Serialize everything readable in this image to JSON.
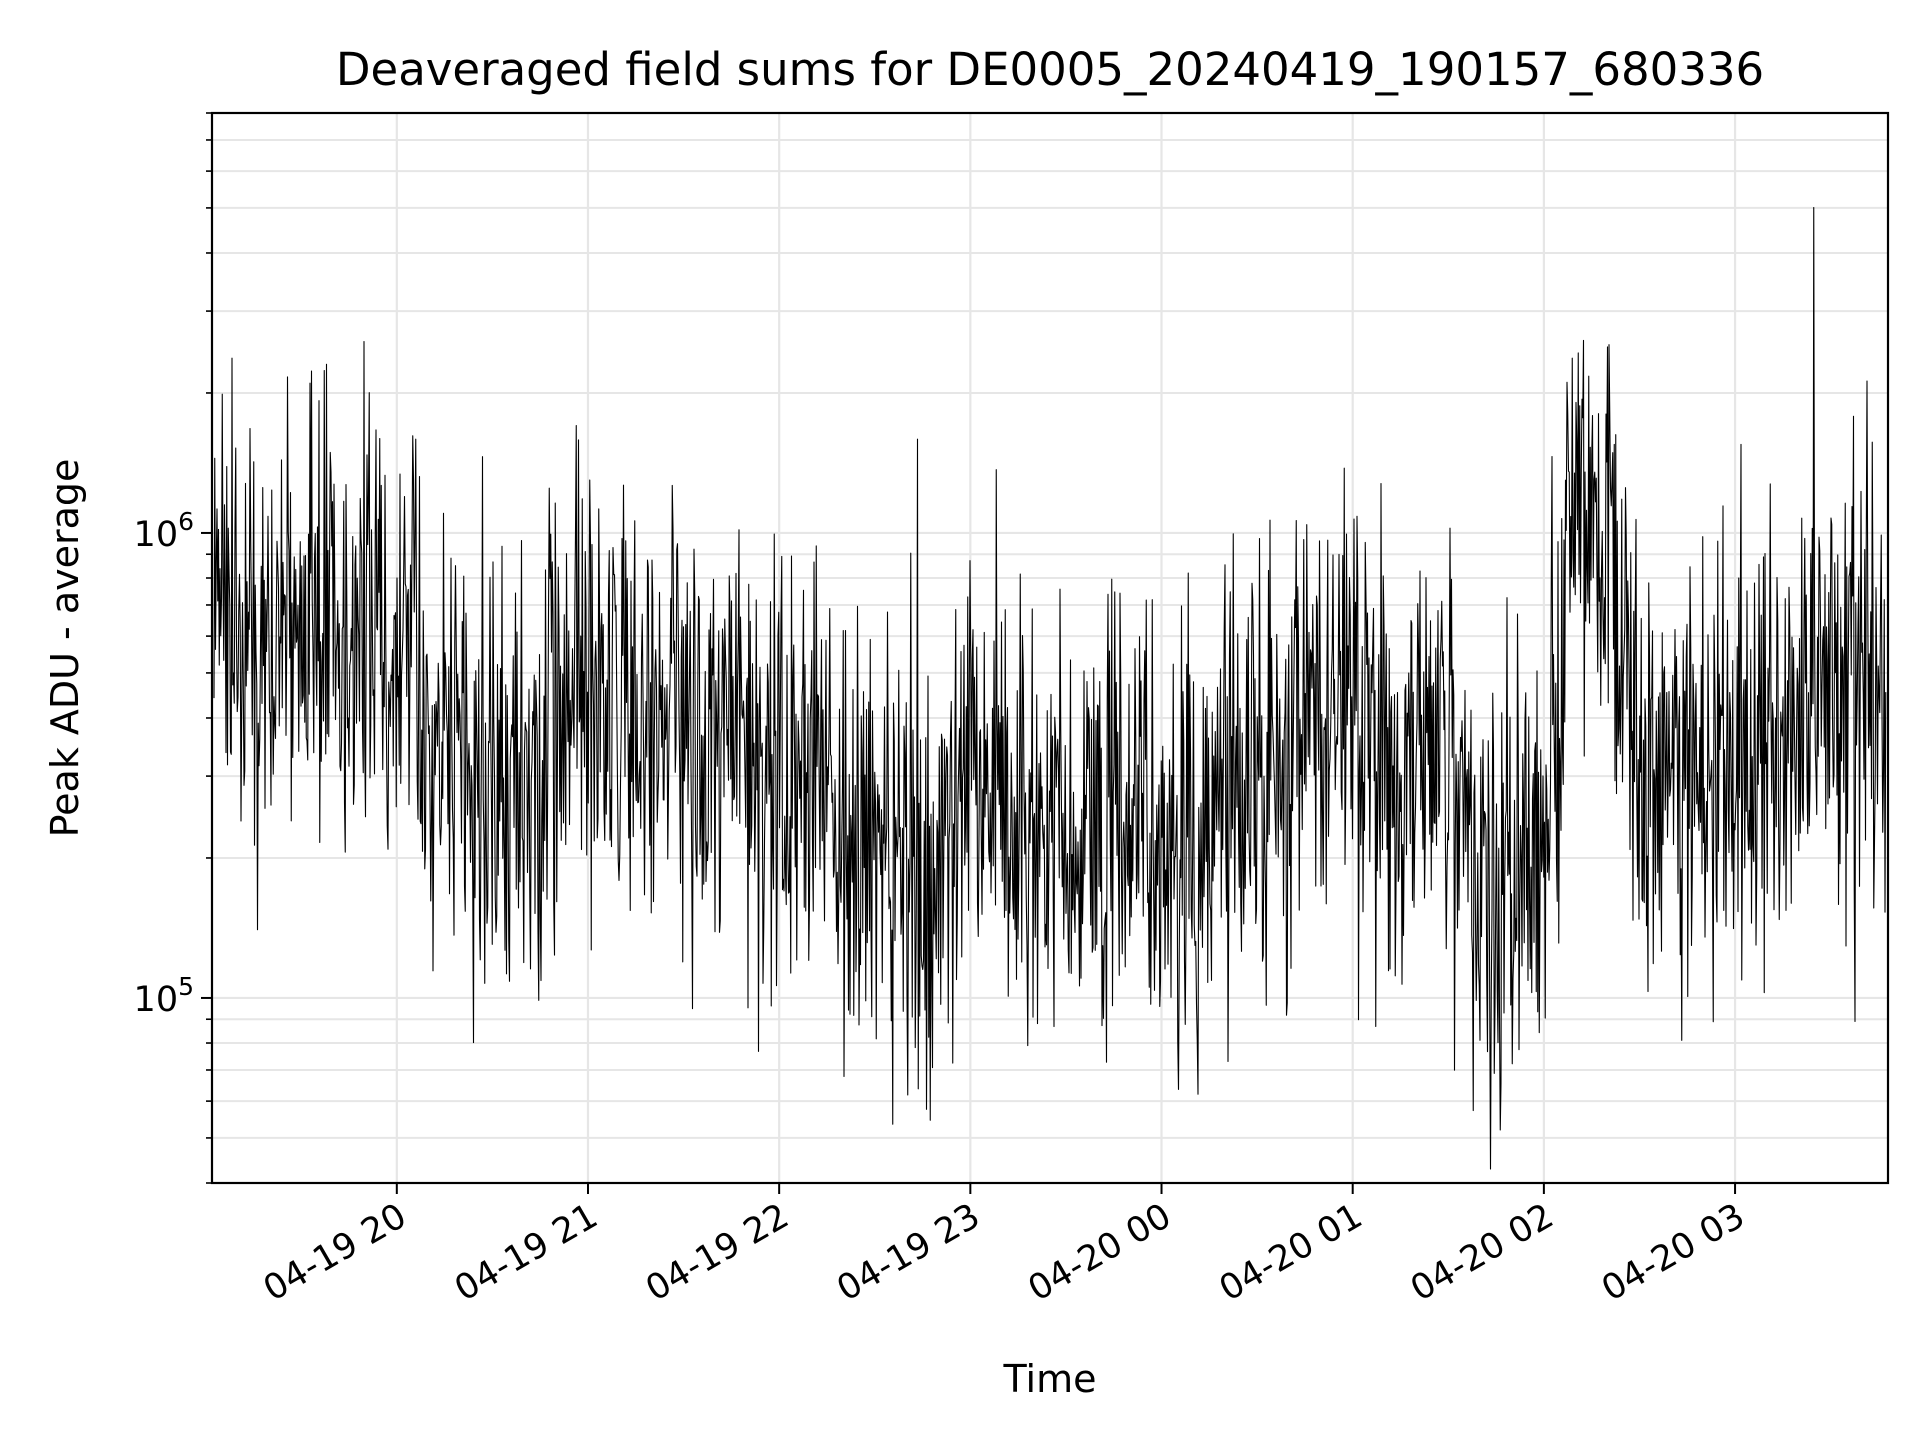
{
  "chart_data": {
    "type": "line",
    "title": "Deaveraged field sums for DE0005_20240419_190157_680336",
    "xlabel": "Time",
    "ylabel": "Peak ADU - average",
    "yscale": "log",
    "ylim": [
      40000,
      8000000
    ],
    "xlim": [
      "2024-04-19 19:02",
      "2024-04-20 03:48"
    ],
    "grid": true,
    "line_color": "#000000",
    "x_ticks": [
      {
        "time": "2024-04-19 20:00",
        "label": "04-19 20"
      },
      {
        "time": "2024-04-19 21:00",
        "label": "04-19 21"
      },
      {
        "time": "2024-04-19 22:00",
        "label": "04-19 22"
      },
      {
        "time": "2024-04-19 23:00",
        "label": "04-19 23"
      },
      {
        "time": "2024-04-20 00:00",
        "label": "04-20 00"
      },
      {
        "time": "2024-04-20 01:00",
        "label": "04-20 01"
      },
      {
        "time": "2024-04-20 02:00",
        "label": "04-20 02"
      },
      {
        "time": "2024-04-20 03:00",
        "label": "04-20 03"
      }
    ],
    "y_ticks": [
      {
        "value": 100000,
        "label_base": "10",
        "label_exp": "5"
      },
      {
        "value": 1000000,
        "label_base": "10",
        "label_exp": "6"
      }
    ],
    "series": [
      {
        "x": [
          "2024-04-19 19:05",
          "2024-04-19 19:15",
          "2024-04-19 19:30",
          "2024-04-19 19:45",
          "2024-04-19 20:00",
          "2024-04-19 20:15",
          "2024-04-19 20:30",
          "2024-04-19 20:45",
          "2024-04-19 21:00",
          "2024-04-19 21:15",
          "2024-04-19 21:30",
          "2024-04-19 21:45",
          "2024-04-19 22:00",
          "2024-04-19 22:15",
          "2024-04-19 22:30",
          "2024-04-19 22:45",
          "2024-04-19 23:00",
          "2024-04-19 23:15",
          "2024-04-19 23:30",
          "2024-04-19 23:45",
          "2024-04-20 00:00",
          "2024-04-20 00:15",
          "2024-04-20 00:30",
          "2024-04-20 00:45",
          "2024-04-20 01:00",
          "2024-04-20 01:15",
          "2024-04-20 01:30",
          "2024-04-20 01:45",
          "2024-04-20 02:00",
          "2024-04-20 02:10",
          "2024-04-20 02:20",
          "2024-04-20 02:30",
          "2024-04-20 02:45",
          "2024-04-20 03:00",
          "2024-04-20 03:15",
          "2024-04-20 03:30",
          "2024-04-20 03:45"
        ],
        "y": [
          700000,
          600000,
          650000,
          600000,
          550000,
          300000,
          280000,
          320000,
          450000,
          420000,
          380000,
          400000,
          320000,
          280000,
          220000,
          170000,
          300000,
          260000,
          220000,
          250000,
          230000,
          220000,
          300000,
          420000,
          350000,
          300000,
          330000,
          150000,
          180000,
          1200000,
          900000,
          300000,
          260000,
          320000,
          400000,
          480000,
          520000
        ]
      }
    ]
  }
}
